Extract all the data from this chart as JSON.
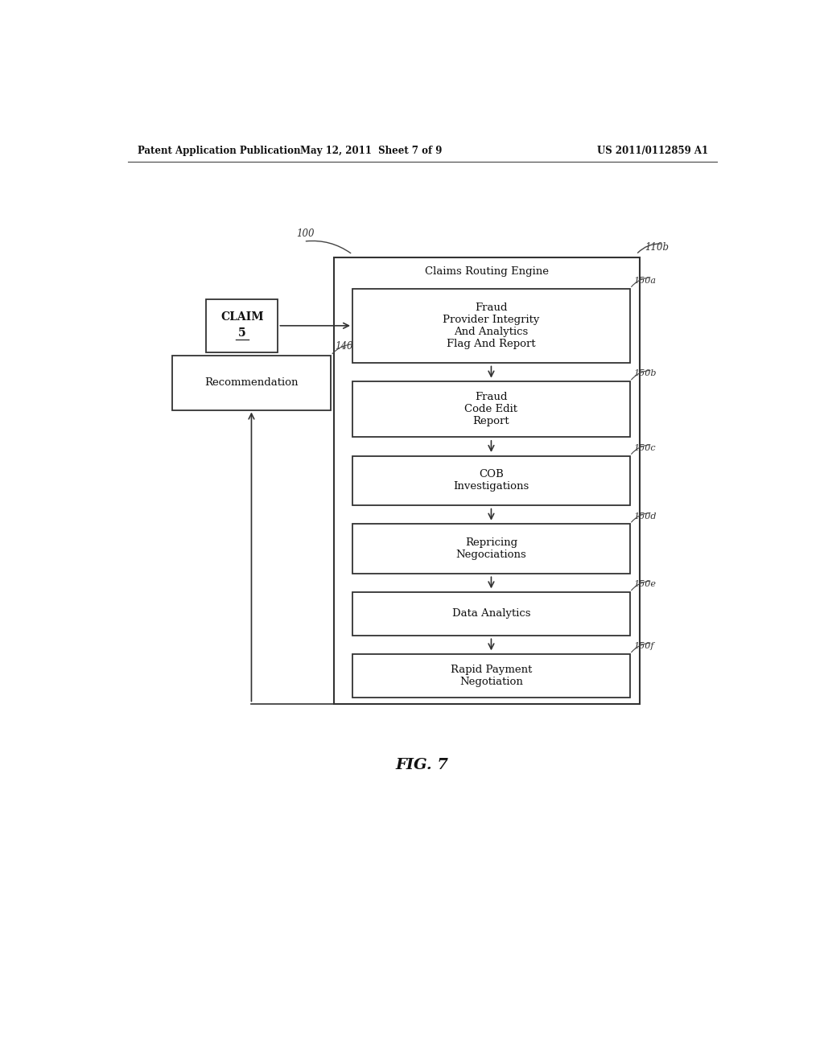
{
  "bg_color": "#ffffff",
  "header_left": "Patent Application Publication",
  "header_mid": "May 12, 2011  Sheet 7 of 9",
  "header_right": "US 2011/0112859 A1",
  "fig_label": "FIG. 7",
  "label_100": "100",
  "label_110b": "110b",
  "label_140": "140",
  "label_150a": "150a",
  "label_150b": "150b",
  "label_150c": "150c",
  "label_150d": "150d",
  "label_150e": "150e",
  "label_150f": "150f",
  "claim_box_text_line1": "CLAIM",
  "claim_box_text_line2": "5",
  "outer_box_title": "Claims Routing Engine",
  "box_150a_text": "Fraud\nProvider Integrity\nAnd Analytics\nFlag And Report",
  "box_150b_text": "Fraud\nCode Edit\nReport",
  "box_150c_text": "COB\nInvestigations",
  "box_150d_text": "Repricing\nNegociations",
  "box_150e_text": "Data Analytics",
  "box_150f_text": "Rapid Payment\nNegotiation",
  "recommendation_text": "Recommendation"
}
